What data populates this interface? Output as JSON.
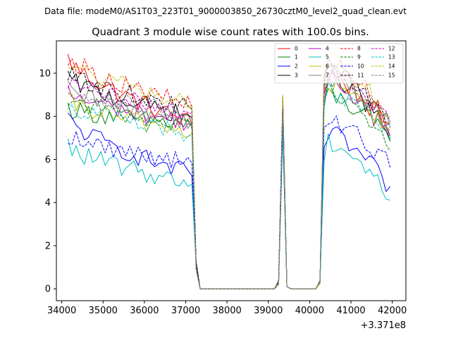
{
  "suptitle": "Data file: modeM0/AS1T03_223T01_9000003850_26730cztM0_level2_quad_clean.evt",
  "chart_data": {
    "type": "line",
    "title": "Quadrant 3 module wise count rates with 100.0s bins.",
    "xlabel": "",
    "ylabel": "",
    "x_offset_label": "+3.371e8",
    "xlim": [
      33870,
      42330
    ],
    "ylim": [
      -0.55,
      11.5
    ],
    "xticks": [
      34000,
      35000,
      36000,
      37000,
      38000,
      39000,
      40000,
      41000,
      42000
    ],
    "xtick_labels": [
      "34000",
      "35000",
      "36000",
      "37000",
      "38000",
      "39000",
      "40000",
      "41000",
      "42000"
    ],
    "yticks": [
      0,
      2,
      4,
      6,
      8,
      10
    ],
    "ytick_labels": [
      "0",
      "2",
      "4",
      "6",
      "8",
      "10"
    ],
    "x_start": 34150,
    "x_step": 100,
    "segments": [
      {
        "start_index": 0,
        "end_index": 29,
        "min_factor": 0.92,
        "max_factor": 1.04,
        "level": 1.0
      },
      {
        "start_index": 30,
        "end_index": 31,
        "levels": [
          0.15,
          0.0
        ]
      },
      {
        "start_index": 32,
        "end_index": 50,
        "level": 0.0
      },
      {
        "start_index": 51,
        "end_index": 54,
        "levels": [
          0.3,
          1.0,
          0.3,
          0.0
        ]
      },
      {
        "start_index": 55,
        "end_index": 60,
        "level": 0.0
      },
      {
        "start_index": 61,
        "end_index": 62,
        "levels": [
          0.05,
          0.9
        ]
      },
      {
        "start_index": 63,
        "end_index": 78,
        "level": 1.0
      }
    ],
    "note": "Series are described by base levels (counts/s) for the pre-gap and post-gap intervals; individual noisy samples are generated deterministically from these values.",
    "series": [
      {
        "name": "0",
        "color": "#ff0000",
        "dash": "solid",
        "pre_start": 10.7,
        "pre_end": 7.7,
        "post_peak": 10.0,
        "post_end": 7.2,
        "spike": 8.3
      },
      {
        "name": "1",
        "color": "#008000",
        "dash": "solid",
        "pre_start": 8.4,
        "pre_end": 7.6,
        "post_peak": 9.0,
        "post_end": 6.8,
        "spike": 8.2
      },
      {
        "name": "2",
        "color": "#0000ff",
        "dash": "solid",
        "pre_start": 7.9,
        "pre_end": 5.3,
        "post_peak": 7.2,
        "post_end": 4.6,
        "spike": 7.5
      },
      {
        "name": "3",
        "color": "#000000",
        "dash": "solid",
        "pre_start": 9.8,
        "pre_end": 8.0,
        "post_peak": 10.1,
        "post_end": 7.0,
        "spike": 8.9
      },
      {
        "name": "4",
        "color": "#bf00bf",
        "dash": "solid",
        "pre_start": 9.1,
        "pre_end": 7.7,
        "post_peak": 9.8,
        "post_end": 7.0,
        "spike": 8.5
      },
      {
        "name": "5",
        "color": "#00bfbf",
        "dash": "solid",
        "pre_start": 6.6,
        "pre_end": 4.9,
        "post_peak": 6.9,
        "post_end": 4.2,
        "spike": 7.2
      },
      {
        "name": "6",
        "color": "#bfbf00",
        "dash": "solid",
        "pre_start": 8.7,
        "pre_end": 7.3,
        "post_peak": 9.5,
        "post_end": 7.3,
        "spike": 8.0
      },
      {
        "name": "7",
        "color": "#808080",
        "dash": "solid",
        "pre_start": 9.2,
        "pre_end": 7.8,
        "post_peak": 9.7,
        "post_end": 7.6,
        "spike": 8.3
      },
      {
        "name": "8",
        "color": "#ff0000",
        "dash": "dashed",
        "pre_start": 10.8,
        "pre_end": 8.5,
        "post_peak": 10.6,
        "post_end": 7.7,
        "spike": 8.6
      },
      {
        "name": "9",
        "color": "#008000",
        "dash": "dashed",
        "pre_start": 8.9,
        "pre_end": 7.5,
        "post_peak": 9.4,
        "post_end": 6.3,
        "spike": 8.1
      },
      {
        "name": "10",
        "color": "#0000ff",
        "dash": "dashed",
        "pre_start": 7.1,
        "pre_end": 5.9,
        "post_peak": 7.8,
        "post_end": 5.7,
        "spike": 7.7
      },
      {
        "name": "11",
        "color": "#000000",
        "dash": "dashed",
        "pre_start": 10.0,
        "pre_end": 8.4,
        "post_peak": 10.4,
        "post_end": 7.6,
        "spike": 8.8
      },
      {
        "name": "12",
        "color": "#bf00bf",
        "dash": "dashed",
        "pre_start": 9.6,
        "pre_end": 8.2,
        "post_peak": 10.1,
        "post_end": 7.9,
        "spike": 8.7
      },
      {
        "name": "13",
        "color": "#00bfbf",
        "dash": "dashed",
        "pre_start": 8.6,
        "pre_end": 7.2,
        "post_peak": 9.2,
        "post_end": 6.9,
        "spike": 8.0
      },
      {
        "name": "14",
        "color": "#bfbf00",
        "dash": "dashed",
        "pre_start": 10.5,
        "pre_end": 8.6,
        "post_peak": 10.7,
        "post_end": 7.9,
        "spike": 9.0
      },
      {
        "name": "15",
        "color": "#808080",
        "dash": "dashed",
        "pre_start": 9.3,
        "pre_end": 8.1,
        "post_peak": 9.9,
        "post_end": 7.8,
        "spike": 8.4
      }
    ],
    "legend": {
      "placement": "top-right",
      "columns": 4
    }
  }
}
